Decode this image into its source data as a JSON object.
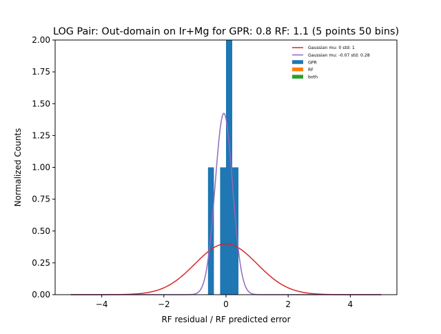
{
  "chart_data": {
    "type": "bar",
    "title": "LOG Pair: Out-domain on Ir+Mg for GPR: 0.8 RF: 1.1 (5 points 50 bins)",
    "xlabel": "RF residual / RF predicted error",
    "ylabel": "Normalized Counts",
    "xlim": [
      -5.5,
      5.5
    ],
    "ylim": [
      0,
      2.0
    ],
    "xticks": [
      -4,
      -2,
      0,
      2,
      4
    ],
    "xtick_labels": [
      "−4",
      "−2",
      "0",
      "2",
      "4"
    ],
    "yticks": [
      0,
      0.25,
      0.5,
      0.75,
      1.0,
      1.25,
      1.5,
      1.75,
      2.0
    ],
    "ytick_labels": [
      "0.00",
      "0.25",
      "0.50",
      "0.75",
      "1.00",
      "1.25",
      "1.50",
      "1.75",
      "2.00"
    ],
    "grid": false,
    "legend_position": "top-right",
    "bar_series": [
      {
        "name": "GPR",
        "color": "#1f77b4",
        "bins": [
          {
            "x0": -0.58,
            "x1": -0.39,
            "value": 1.0
          },
          {
            "x0": -0.19,
            "x1": 0.0,
            "value": 1.0
          },
          {
            "x0": 0.0,
            "x1": 0.2,
            "value": 2.0
          },
          {
            "x0": 0.2,
            "x1": 0.4,
            "value": 1.0
          }
        ]
      },
      {
        "name": "RF",
        "color": "#ff7f0e",
        "bins": []
      },
      {
        "name": "both",
        "color": "#2ca02c",
        "bins": []
      }
    ],
    "curves": [
      {
        "name": "Gaussian mu: 0 std: 1",
        "color": "#d62728",
        "mu": 0,
        "std": 1,
        "x_range": [
          -5,
          5
        ]
      },
      {
        "name": "Gaussian mu: -0.07 std: 0.28",
        "color": "#9467bd",
        "mu": -0.07,
        "std": 0.28,
        "x_range": [
          -5,
          5
        ]
      }
    ]
  }
}
